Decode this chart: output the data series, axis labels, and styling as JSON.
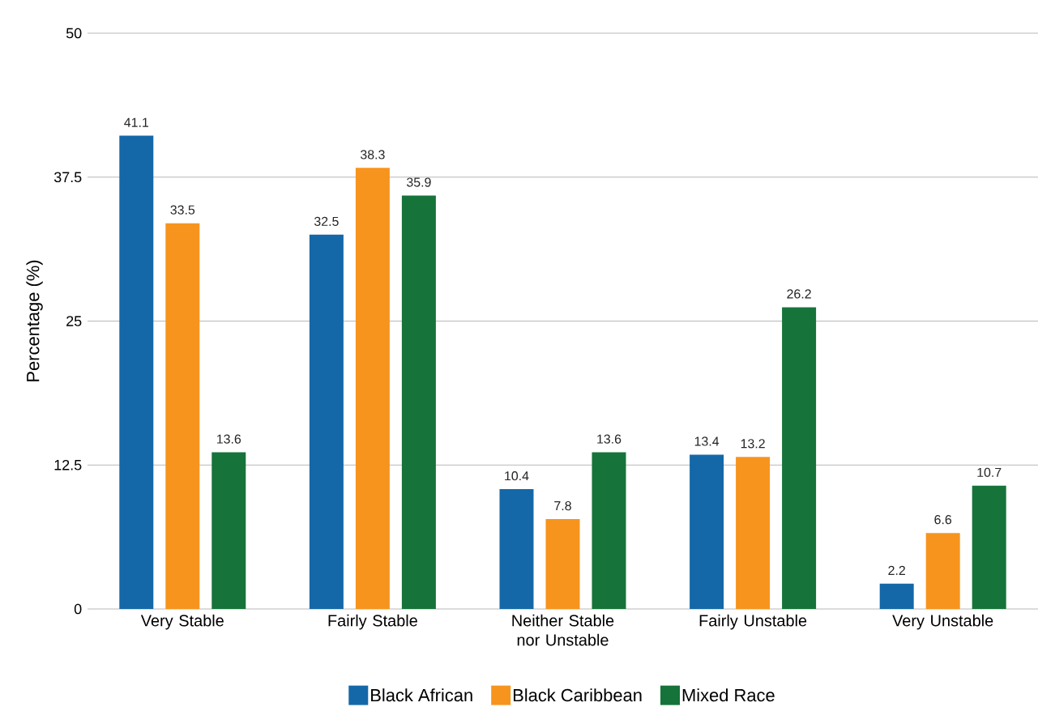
{
  "chart_data": {
    "type": "bar",
    "ylabel": "Percentage (%)",
    "categories": [
      "Very Stable",
      "Fairly Stable",
      "Neither Stable nor Unstable",
      "Fairly Unstable",
      "Very Unstable"
    ],
    "series": [
      {
        "name": "Black African",
        "color": "#1468a8",
        "values": [
          41.1,
          32.5,
          10.4,
          13.4,
          2.2
        ]
      },
      {
        "name": "Black Caribbean",
        "color": "#f7941d",
        "values": [
          33.5,
          38.3,
          7.8,
          13.2,
          6.6
        ]
      },
      {
        "name": "Mixed Race",
        "color": "#16733a",
        "values": [
          13.6,
          35.9,
          13.6,
          26.2,
          10.7
        ]
      }
    ],
    "ylim": [
      0,
      50
    ],
    "yticks": [
      0,
      12.5,
      25,
      37.5,
      50
    ],
    "grid": "y",
    "legend": "bottom",
    "data_labels": true
  }
}
